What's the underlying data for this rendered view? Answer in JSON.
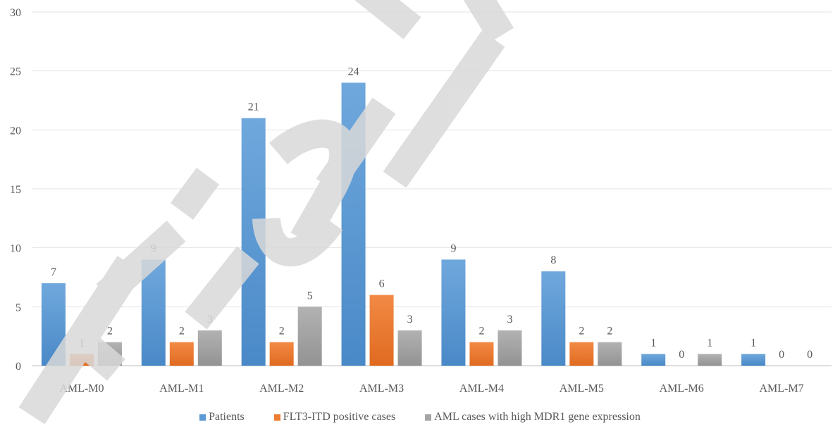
{
  "chart_data": {
    "type": "bar",
    "categories": [
      "AML-M0",
      "AML-M1",
      "AML-M2",
      "AML-M3",
      "AML-M4",
      "AML-M5",
      "AML-M6",
      "AML-M7"
    ],
    "series": [
      {
        "name": "Patients",
        "values": [
          7,
          9,
          21,
          24,
          9,
          8,
          1,
          1
        ],
        "color": "#5B9BD5"
      },
      {
        "name": "FLT3-ITD positive cases",
        "values": [
          1,
          2,
          2,
          6,
          2,
          2,
          0,
          0
        ],
        "color": "#ED7D31"
      },
      {
        "name": "AML cases with high MDR1 gene expression",
        "values": [
          2,
          3,
          5,
          3,
          3,
          2,
          1,
          0
        ],
        "color": "#A5A5A5"
      }
    ],
    "ylim": [
      0,
      30
    ],
    "yticks": [
      0,
      5,
      10,
      15,
      20,
      25,
      30
    ],
    "grid": true,
    "legend_position": "bottom",
    "title": "",
    "xlabel": "",
    "ylabel": ""
  },
  "watermark": {
    "text": "Final P",
    "color": "#D9D9D9"
  }
}
